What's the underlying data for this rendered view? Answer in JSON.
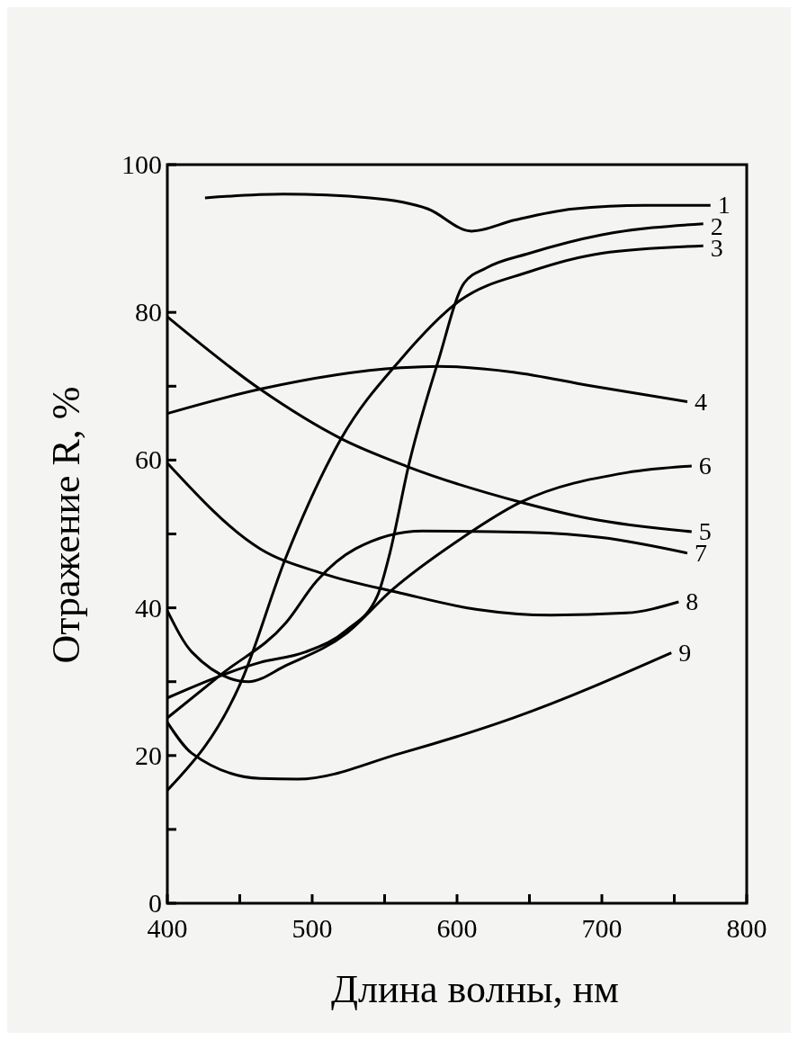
{
  "chart_data": {
    "type": "line",
    "xlabel": "Длина волны, нм",
    "ylabel": "Отражение R, %",
    "xlim": [
      400,
      800
    ],
    "ylim": [
      0,
      100
    ],
    "xticks": [
      400,
      {
        "value": 450,
        "label": null
      },
      500,
      {
        "value": 550,
        "label": null
      },
      600,
      {
        "value": 650,
        "label": null
      },
      700,
      {
        "value": 750,
        "label": null
      },
      800
    ],
    "yticks": [
      0,
      {
        "value": 10,
        "label": null
      },
      20,
      {
        "value": 30,
        "label": null
      },
      40,
      {
        "value": 50,
        "label": null
      },
      60,
      {
        "value": 70,
        "label": null
      },
      80,
      100
    ],
    "grid": false,
    "marker": "none",
    "line_style": "solid",
    "series": [
      {
        "name": "1",
        "color": "#000000",
        "x": [
          426,
          480,
          540,
          580,
          610,
          640,
          680,
          730,
          775
        ],
        "values": [
          95.5,
          96,
          95.5,
          94,
          91,
          92.5,
          94,
          94.5,
          94.5
        ]
      },
      {
        "name": "2",
        "color": "#000000",
        "x": [
          400,
          464,
          495,
          524,
          545,
          553,
          567,
          587,
          605,
          620,
          650,
          700,
          770
        ],
        "values": [
          27.8,
          32.6,
          34,
          37,
          41.6,
          46.9,
          59.6,
          73.4,
          84,
          86,
          88,
          90.5,
          92
        ]
      },
      {
        "name": "3",
        "color": "#000000",
        "x": [
          400,
          451,
          482,
          520,
          561,
          602,
          650,
          700,
          770
        ],
        "values": [
          15.3,
          30,
          46.9,
          62.9,
          73.6,
          81.6,
          85.5,
          88,
          89
        ]
      },
      {
        "name": "4",
        "color": "#000000",
        "x": [
          400,
          464,
          561,
          587,
          639,
          691,
          759
        ],
        "values": [
          66.3,
          69.6,
          72.5,
          72.7,
          71.9,
          70.1,
          67.9
        ]
      },
      {
        "name": "5",
        "color": "#000000",
        "x": [
          400,
          464,
          520,
          566,
          644,
          691,
          762
        ],
        "values": [
          79.4,
          69.6,
          62.9,
          59.1,
          54.3,
          52.1,
          50.3
        ]
      },
      {
        "name": "6",
        "color": "#000000",
        "x": [
          400,
          417,
          456,
          482,
          524,
          555,
          600,
          644,
          717,
          762
        ],
        "values": [
          39.6,
          34,
          30,
          32.2,
          36.6,
          42.4,
          49,
          54.3,
          58.3,
          59.2
        ]
      },
      {
        "name": "7",
        "color": "#000000",
        "x": [
          400,
          438,
          482,
          503,
          530,
          576,
          650,
          700,
          759
        ],
        "values": [
          25.1,
          31.1,
          38,
          43.6,
          48,
          50.4,
          50.2,
          49.5,
          47.4
        ]
      },
      {
        "name": "8",
        "color": "#000000",
        "x": [
          400,
          464,
          508,
          561,
          613,
          665,
          717,
          753
        ],
        "values": [
          59.6,
          48,
          44.6,
          42,
          39.8,
          39,
          39.3,
          40.8
        ]
      },
      {
        "name": "9",
        "color": "#000000",
        "x": [
          400,
          417,
          464,
          490,
          561,
          639,
          748
        ],
        "values": [
          24.5,
          20.3,
          16.9,
          16.8,
          20.3,
          25.1,
          33.9
        ]
      }
    ]
  }
}
